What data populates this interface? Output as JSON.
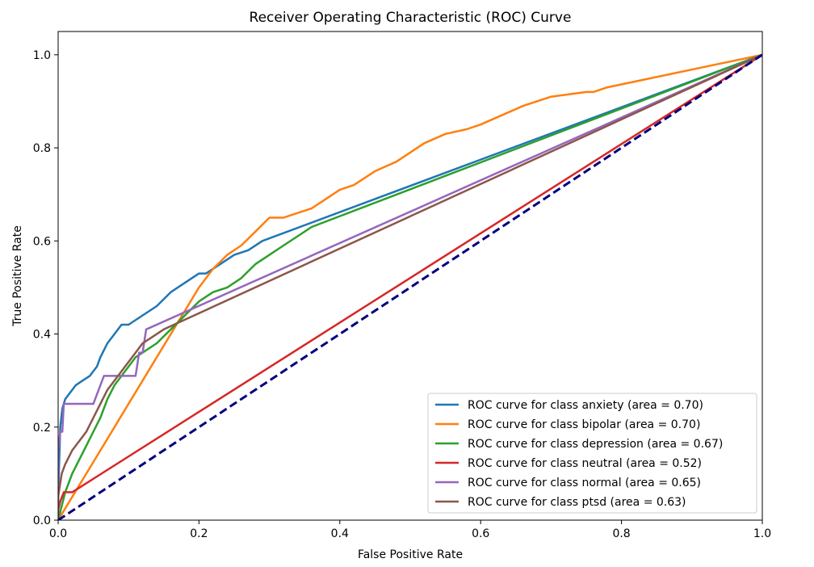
{
  "chart_data": {
    "type": "line",
    "title": "Receiver Operating Characteristic (ROC) Curve",
    "xlabel": "False Positive Rate",
    "ylabel": "True Positive Rate",
    "xlim": [
      0.0,
      1.0
    ],
    "ylim": [
      0.0,
      1.05
    ],
    "xticks": [
      "0.0",
      "0.2",
      "0.4",
      "0.6",
      "0.8",
      "1.0"
    ],
    "yticks": [
      "0.0",
      "0.2",
      "0.4",
      "0.6",
      "0.8",
      "1.0"
    ],
    "grid": false,
    "legend_position": "lower-right",
    "reference_line": {
      "x": [
        0,
        1
      ],
      "y": [
        0,
        1
      ],
      "color": "#000080",
      "style": "dashed"
    },
    "series": [
      {
        "name": "ROC curve for class anxiety (area = 0.70)",
        "color": "#1f77b4",
        "x": [
          0.0,
          0.0,
          0.003,
          0.006,
          0.01,
          0.015,
          0.02,
          0.025,
          0.035,
          0.045,
          0.055,
          0.06,
          0.07,
          0.08,
          0.09,
          0.1,
          0.12,
          0.14,
          0.16,
          0.18,
          0.2,
          0.21,
          0.23,
          0.25,
          0.27,
          0.29,
          1.0
        ],
        "y": [
          0.0,
          0.05,
          0.2,
          0.24,
          0.26,
          0.27,
          0.28,
          0.29,
          0.3,
          0.31,
          0.33,
          0.35,
          0.38,
          0.4,
          0.42,
          0.42,
          0.44,
          0.46,
          0.49,
          0.51,
          0.53,
          0.53,
          0.55,
          0.57,
          0.58,
          0.6,
          1.0
        ]
      },
      {
        "name": "ROC curve for class bipolar (area = 0.70)",
        "color": "#ff7f0e",
        "x": [
          0.0,
          0.18,
          0.2,
          0.22,
          0.24,
          0.26,
          0.28,
          0.3,
          0.32,
          0.34,
          0.36,
          0.38,
          0.4,
          0.42,
          0.45,
          0.48,
          0.5,
          0.52,
          0.55,
          0.58,
          0.6,
          0.63,
          0.66,
          0.7,
          0.75,
          0.76,
          0.78,
          1.0
        ],
        "y": [
          0.0,
          0.45,
          0.5,
          0.54,
          0.57,
          0.59,
          0.62,
          0.65,
          0.65,
          0.66,
          0.67,
          0.69,
          0.71,
          0.72,
          0.75,
          0.77,
          0.79,
          0.81,
          0.83,
          0.84,
          0.85,
          0.87,
          0.89,
          0.91,
          0.92,
          0.92,
          0.93,
          1.0
        ]
      },
      {
        "name": "ROC curve for class depression (area = 0.67)",
        "color": "#2ca02c",
        "x": [
          0.0,
          0.005,
          0.01,
          0.015,
          0.02,
          0.03,
          0.04,
          0.05,
          0.06,
          0.07,
          0.08,
          0.09,
          0.1,
          0.11,
          0.12,
          0.14,
          0.16,
          0.18,
          0.2,
          0.22,
          0.24,
          0.26,
          0.28,
          0.3,
          0.32,
          0.34,
          0.36,
          1.0
        ],
        "y": [
          0.0,
          0.03,
          0.06,
          0.08,
          0.1,
          0.13,
          0.16,
          0.19,
          0.22,
          0.26,
          0.29,
          0.31,
          0.33,
          0.35,
          0.36,
          0.38,
          0.41,
          0.44,
          0.47,
          0.49,
          0.5,
          0.52,
          0.55,
          0.57,
          0.59,
          0.61,
          0.63,
          1.0
        ]
      },
      {
        "name": "ROC curve for class neutral (area = 0.52)",
        "color": "#d62728",
        "x": [
          0.0,
          0.0,
          0.003,
          0.008,
          0.012,
          0.02,
          1.0
        ],
        "y": [
          0.0,
          0.02,
          0.04,
          0.06,
          0.06,
          0.06,
          1.0
        ]
      },
      {
        "name": "ROC curve for class normal (area = 0.65)",
        "color": "#9467bd",
        "x": [
          0.0,
          0.0,
          0.003,
          0.006,
          0.008,
          0.01,
          0.05,
          0.065,
          0.11,
          0.115,
          0.12,
          0.125,
          1.0
        ],
        "y": [
          0.0,
          0.15,
          0.19,
          0.19,
          0.25,
          0.25,
          0.25,
          0.31,
          0.31,
          0.36,
          0.36,
          0.41,
          1.0
        ]
      },
      {
        "name": "ROC curve for class ptsd (area = 0.63)",
        "color": "#8c564b",
        "x": [
          0.0,
          0.0,
          0.005,
          0.01,
          0.02,
          0.03,
          0.04,
          0.05,
          0.06,
          0.07,
          0.08,
          0.09,
          0.1,
          0.11,
          0.12,
          0.13,
          0.15,
          1.0
        ],
        "y": [
          0.0,
          0.05,
          0.1,
          0.12,
          0.15,
          0.17,
          0.19,
          0.22,
          0.25,
          0.28,
          0.3,
          0.32,
          0.34,
          0.36,
          0.38,
          0.39,
          0.41,
          1.0
        ]
      }
    ]
  }
}
